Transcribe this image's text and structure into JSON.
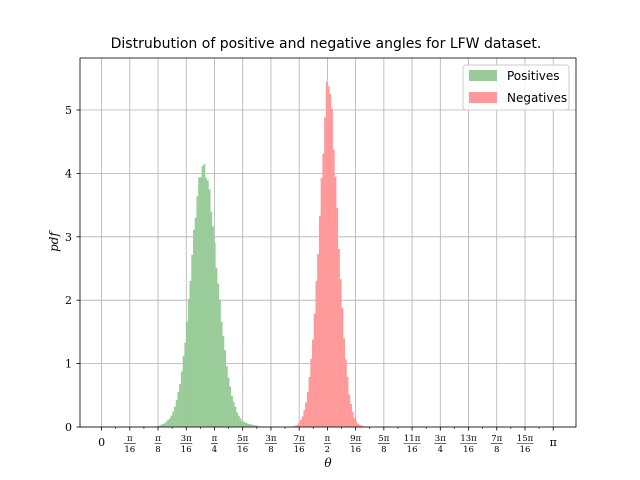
{
  "chart_data": {
    "type": "histogram",
    "title": "Distrubution of positive and negative angles for LFW dataset.",
    "xlabel": "θ",
    "ylabel": "pdf",
    "xlim": [
      -0.15,
      3.3
    ],
    "ylim": [
      0,
      5.82
    ],
    "grid": true,
    "legend_position": "top-right",
    "x_ticks": [
      {
        "value": 0,
        "num": "0",
        "den": ""
      },
      {
        "value": 0.19635,
        "num": "π",
        "den": "16"
      },
      {
        "value": 0.392699,
        "num": "π",
        "den": "8"
      },
      {
        "value": 0.589049,
        "num": "3π",
        "den": "16"
      },
      {
        "value": 0.785398,
        "num": "π",
        "den": "4"
      },
      {
        "value": 0.981748,
        "num": "5π",
        "den": "16"
      },
      {
        "value": 1.178097,
        "num": "3π",
        "den": "8"
      },
      {
        "value": 1.374447,
        "num": "7π",
        "den": "16"
      },
      {
        "value": 1.570796,
        "num": "π",
        "den": "2"
      },
      {
        "value": 1.767146,
        "num": "9π",
        "den": "16"
      },
      {
        "value": 1.963495,
        "num": "5π",
        "den": "8"
      },
      {
        "value": 2.159845,
        "num": "11π",
        "den": "16"
      },
      {
        "value": 2.356194,
        "num": "3π",
        "den": "4"
      },
      {
        "value": 2.552544,
        "num": "13π",
        "den": "16"
      },
      {
        "value": 2.748894,
        "num": "7π",
        "den": "8"
      },
      {
        "value": 2.945243,
        "num": "15π",
        "den": "16"
      },
      {
        "value": 3.141593,
        "num": "π",
        "den": ""
      }
    ],
    "y_ticks": [
      0,
      1,
      2,
      3,
      4,
      5
    ],
    "series": [
      {
        "name": "Positives",
        "color": "#99cc99",
        "x": [
          0.36,
          0.4,
          0.44,
          0.48,
          0.5,
          0.52,
          0.54,
          0.56,
          0.58,
          0.6,
          0.62,
          0.64,
          0.66,
          0.68,
          0.7,
          0.72,
          0.74,
          0.76,
          0.78,
          0.8,
          0.82,
          0.84,
          0.86,
          0.88,
          0.9,
          0.92,
          0.94,
          0.96,
          0.98,
          1.02,
          1.06,
          1.1,
          1.14,
          1.18
        ],
        "values": [
          0.0,
          0.02,
          0.06,
          0.15,
          0.25,
          0.4,
          0.6,
          0.9,
          1.3,
          1.8,
          2.4,
          3.0,
          3.5,
          3.9,
          4.1,
          4.05,
          3.85,
          3.5,
          3.0,
          2.5,
          2.0,
          1.55,
          1.15,
          0.8,
          0.55,
          0.38,
          0.24,
          0.15,
          0.09,
          0.05,
          0.03,
          0.01,
          0.005,
          0.0
        ]
      },
      {
        "name": "Negatives",
        "color": "#ff9999",
        "x": [
          1.32,
          1.36,
          1.38,
          1.4,
          1.42,
          1.44,
          1.46,
          1.48,
          1.5,
          1.52,
          1.54,
          1.56,
          1.57,
          1.58,
          1.6,
          1.62,
          1.64,
          1.66,
          1.68,
          1.7,
          1.72,
          1.74,
          1.76,
          1.78,
          1.82,
          1.86
        ],
        "values": [
          0.0,
          0.03,
          0.08,
          0.18,
          0.35,
          0.65,
          1.1,
          1.7,
          2.5,
          3.4,
          4.3,
          5.1,
          5.5,
          5.45,
          5.0,
          4.2,
          3.3,
          2.4,
          1.6,
          1.0,
          0.55,
          0.28,
          0.13,
          0.05,
          0.01,
          0.0
        ]
      }
    ]
  }
}
